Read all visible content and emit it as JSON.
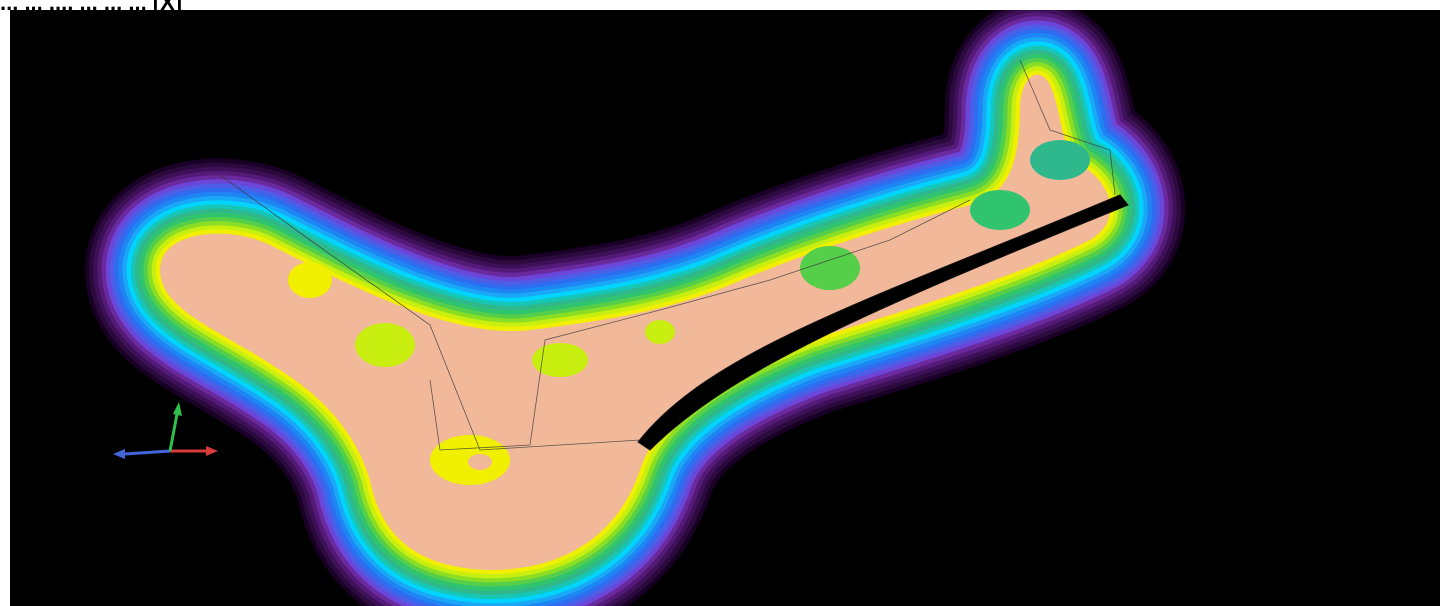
{
  "header": {
    "caption": "... ... ..., ... ... ... [X]"
  },
  "viewport": {
    "background": "#000000"
  },
  "contour": {
    "colors": [
      "#1a0026",
      "#2b0a3d",
      "#3d1057",
      "#541a78",
      "#6a2a9e",
      "#6b46d8",
      "#4e5ce6",
      "#2f6df0",
      "#1d86f4",
      "#1aa7f5",
      "#00d4ff",
      "#16c7b8",
      "#2fb88c",
      "#31c46f",
      "#55cf4a",
      "#8ade24",
      "#c9ef10",
      "#f0f000",
      "#f2b89a"
    ]
  },
  "axis_gizmo": {
    "x_color": "#d93a3a",
    "y_color": "#2fbf4a",
    "z_color": "#4466dd"
  }
}
